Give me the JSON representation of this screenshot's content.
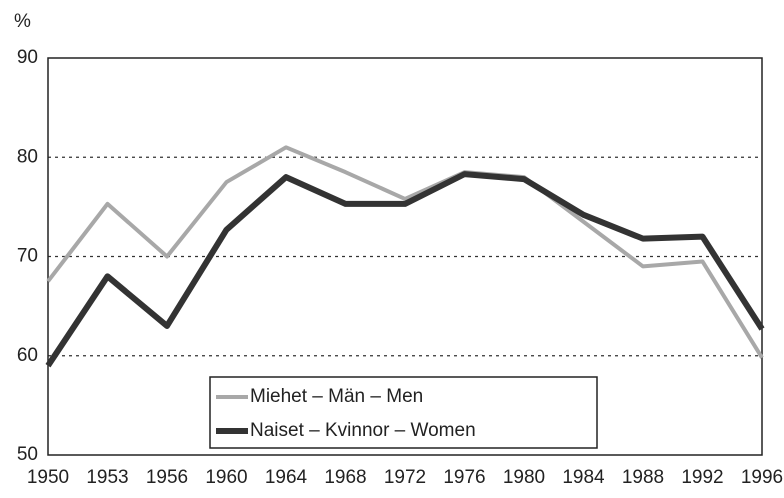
{
  "chart_data": {
    "type": "line",
    "y_label": "%",
    "categories": [
      "1950",
      "1953",
      "1956",
      "1960",
      "1964",
      "1968",
      "1972",
      "1976",
      "1980",
      "1984",
      "1988",
      "1992",
      "1996"
    ],
    "series": [
      {
        "name": "Miehet – Män – Men",
        "color": "#a8a8a8",
        "values": [
          67.5,
          75.3,
          70,
          77.5,
          81,
          78.5,
          75.8,
          78.5,
          78,
          73.5,
          69,
          69.5,
          59.8
        ]
      },
      {
        "name": "Naiset – Kvinnor – Women",
        "color": "#333333",
        "values": [
          59,
          68,
          63,
          72.7,
          78,
          75.3,
          75.3,
          78.3,
          77.8,
          74.2,
          71.8,
          72,
          62.7
        ]
      }
    ],
    "ylim": [
      50,
      90
    ],
    "yticks": [
      50,
      60,
      70,
      80,
      90
    ],
    "grid": true
  }
}
